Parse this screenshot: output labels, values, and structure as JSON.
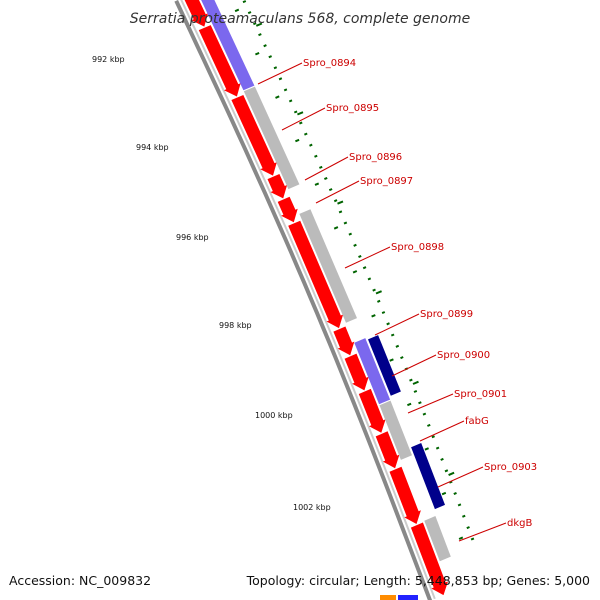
{
  "title": "Serratia proteamaculans 568, complete genome",
  "footer": {
    "accession": "Accession: NC_009832",
    "stats": "Topology: circular; Length: 5,448,853 bp; Genes: 5,000"
  },
  "colors": {
    "forward_cds": "#ff0000",
    "reverse_cds": "#ff0000",
    "feature_gray": "#bbbbbb",
    "feature_purple": "#7b68ee",
    "feature_navy": "#00008b",
    "backbone": "#888888",
    "tick": "#006400",
    "label": "#cc0000"
  },
  "ruler": {
    "labels": [
      "992 kbp",
      "994 kbp",
      "996 kbp",
      "998 kbp",
      "1000 kbp",
      "1002 kbp"
    ]
  },
  "genes": [
    "Spro_0894",
    "Spro_0895",
    "Spro_0896",
    "Spro_0897",
    "Spro_0898",
    "Spro_0899",
    "Spro_0900",
    "Spro_0901",
    "fabG",
    "Spro_0903",
    "dkgB"
  ]
}
